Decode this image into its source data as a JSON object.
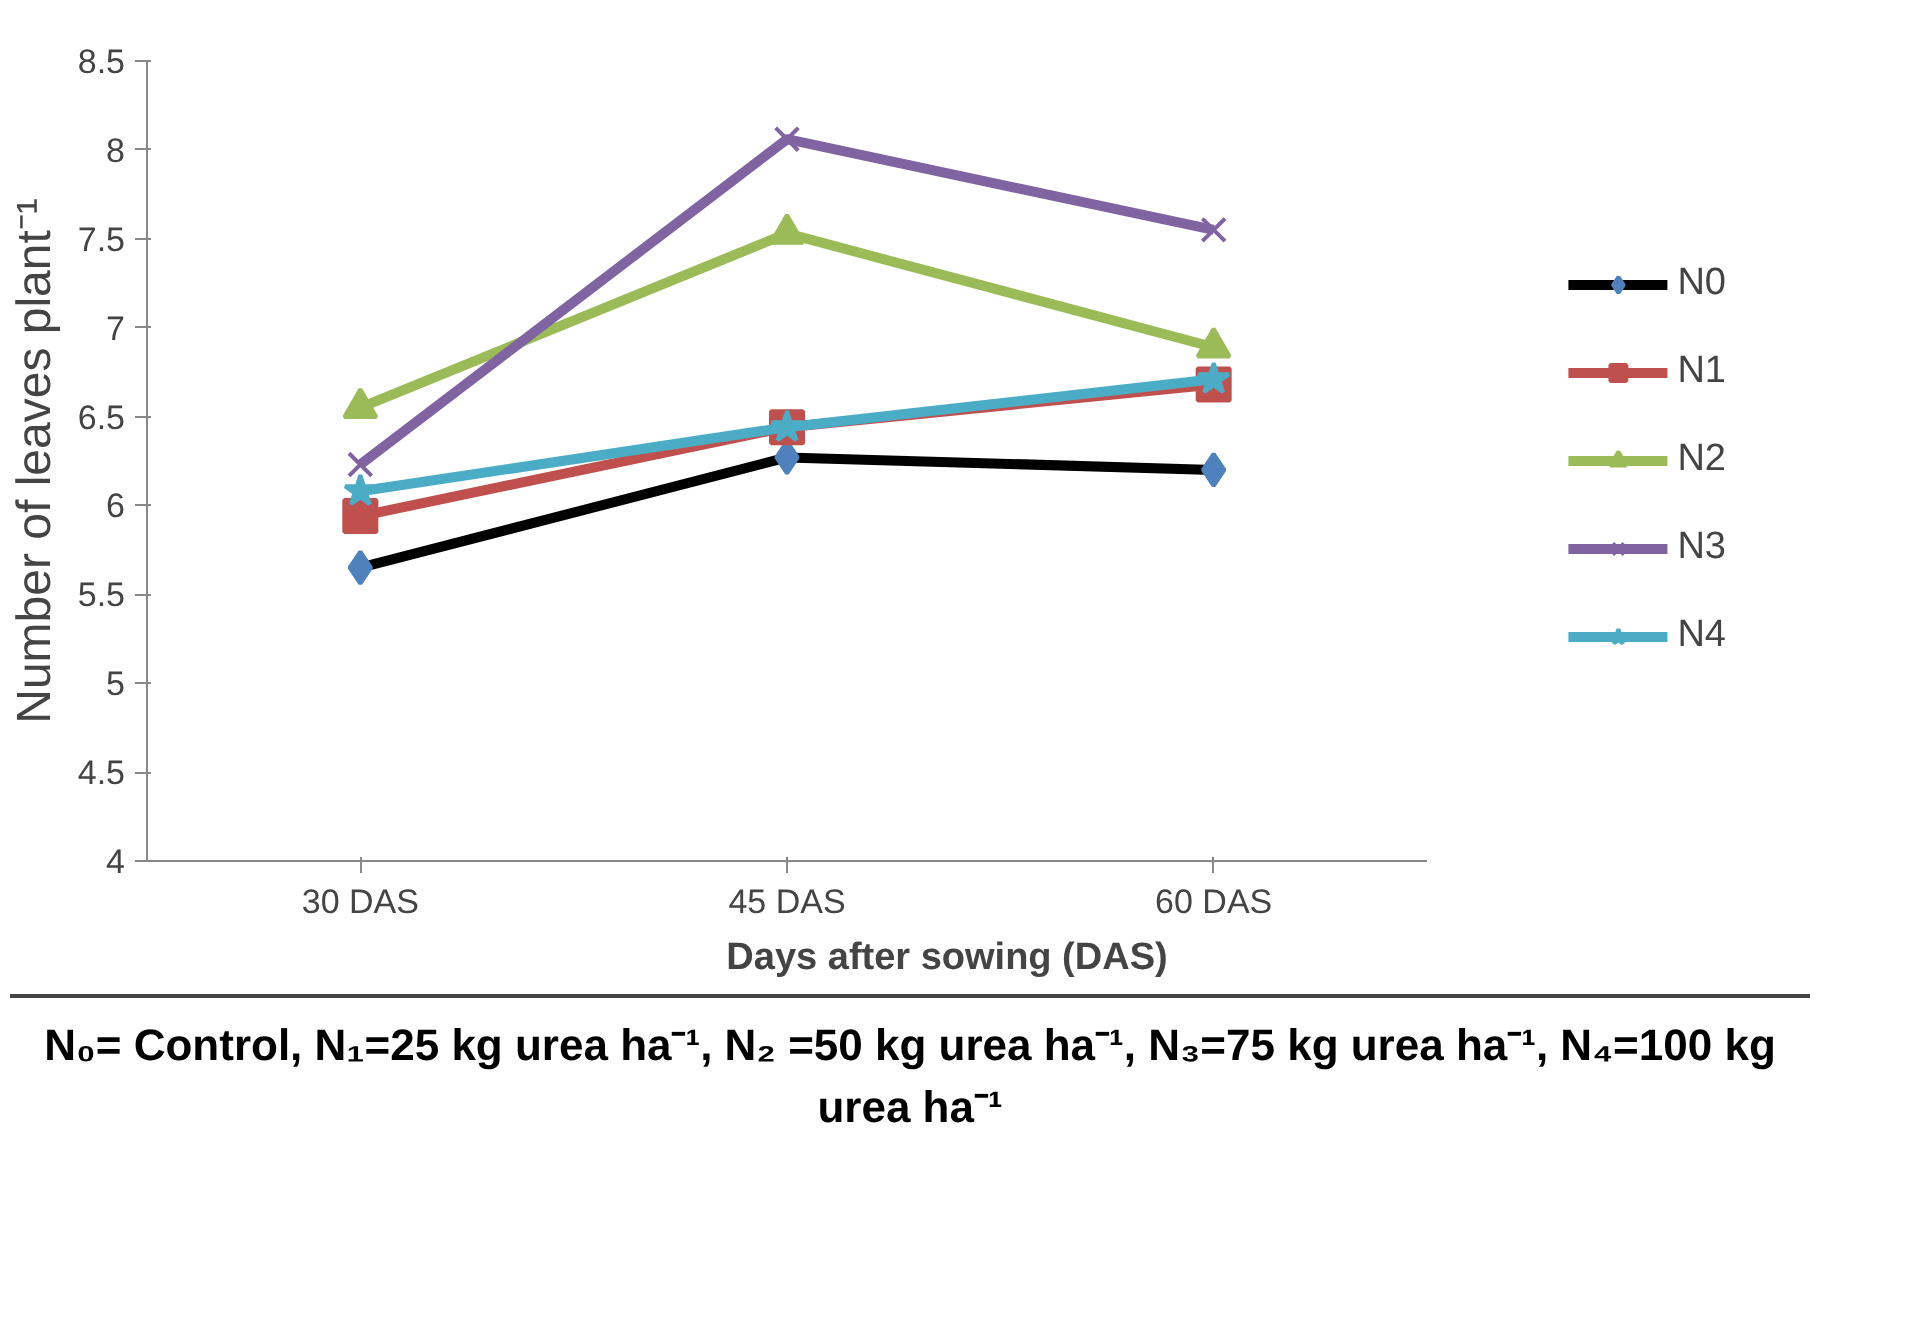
{
  "chart_data": {
    "type": "line",
    "xlabel": "Days after sowing (DAS)",
    "ylabel": "Number of leaves plant⁻¹",
    "categories": [
      "30 DAS",
      "45 DAS",
      "60 DAS"
    ],
    "ylim": [
      4,
      8.5
    ],
    "yticks": [
      4,
      4.5,
      5,
      5.5,
      6,
      6.5,
      7,
      7.5,
      8,
      8.5
    ],
    "grid": false,
    "legend": "right",
    "series": [
      {
        "name": "N0",
        "color": "#000000",
        "marker": "diamond",
        "values": [
          5.65,
          6.27,
          6.2
        ]
      },
      {
        "name": "N1",
        "color": "#c0504d",
        "marker": "square",
        "values": [
          5.94,
          6.44,
          6.68
        ]
      },
      {
        "name": "N2",
        "color": "#9bbb59",
        "marker": "triangle",
        "values": [
          6.55,
          7.53,
          6.89
        ]
      },
      {
        "name": "N3",
        "color": "#8064a2",
        "marker": "cross",
        "values": [
          6.23,
          8.06,
          7.55
        ]
      },
      {
        "name": "N4",
        "color": "#4bacc6",
        "marker": "star",
        "values": [
          6.08,
          6.44,
          6.71
        ]
      }
    ],
    "annotations": [
      "N₀= Control, N₁=25 kg urea ha⁻¹, N₂ =50 kg urea ha⁻¹, N₃=75 kg urea ha⁻¹, N₄=100 kg urea ha⁻¹"
    ]
  }
}
